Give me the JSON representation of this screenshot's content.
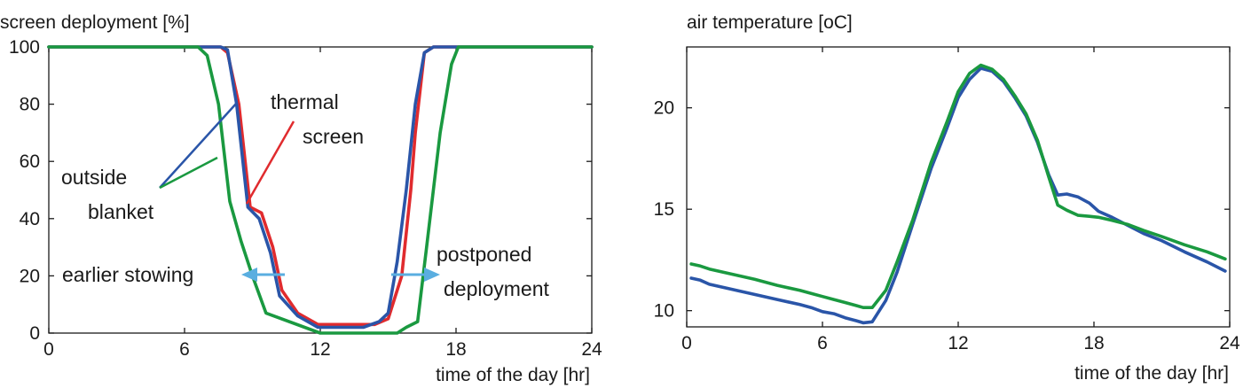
{
  "chart_data": [
    {
      "type": "line",
      "title": "screen deployment [%]",
      "xlabel": "time of the day [hr]",
      "ylabel": "",
      "xlim": [
        0,
        24
      ],
      "ylim": [
        0,
        100
      ],
      "xticks": [
        0,
        6,
        12,
        18,
        24
      ],
      "yticks": [
        0,
        20,
        40,
        60,
        80,
        100
      ],
      "series": [
        {
          "color": "#e02b2e",
          "x": [
            0,
            7.6,
            7.9,
            8.4,
            8.9,
            9.4,
            9.9,
            10.3,
            11,
            11.9,
            12.9,
            13.9,
            14.4,
            15,
            15.6,
            16.0,
            16.2,
            16.6,
            17,
            24
          ],
          "y": [
            100,
            100,
            98,
            80,
            44,
            42,
            30,
            15,
            7,
            3,
            3,
            3,
            3,
            5,
            20,
            50,
            70,
            98,
            100,
            100
          ]
        },
        {
          "color": "#2a55a8",
          "x": [
            0,
            7.6,
            7.9,
            8.3,
            8.8,
            9.3,
            9.8,
            10.2,
            11,
            11.9,
            12.9,
            13.9,
            14.6,
            15,
            15.4,
            15.8,
            16.2,
            16.6,
            17,
            24
          ],
          "y": [
            100,
            100,
            99,
            80,
            44,
            40,
            28,
            13,
            6,
            2,
            2,
            2,
            4,
            7,
            25,
            50,
            80,
            98,
            100,
            100
          ]
        },
        {
          "color": "#1a9940",
          "x": [
            0,
            6.6,
            7.0,
            7.5,
            8.0,
            8.5,
            9.0,
            9.6,
            12,
            15.4,
            15.8,
            16.3,
            16.7,
            17.3,
            17.8,
            18.1,
            24
          ],
          "y": [
            100,
            100,
            97,
            80,
            46,
            32,
            20,
            7,
            0,
            0,
            2,
            4,
            30,
            70,
            94,
            100,
            100
          ]
        }
      ],
      "annotations": [
        "thermal",
        "screen",
        "outside",
        "blanket",
        "earlier stowing",
        "postponed",
        "deployment"
      ]
    },
    {
      "type": "line",
      "title": "air temperature [oC]",
      "xlabel": "time of the day [hr]",
      "ylabel": "",
      "xlim": [
        0,
        24
      ],
      "ylim": [
        9.2,
        23
      ],
      "xticks": [
        0,
        6,
        12,
        18,
        24
      ],
      "yticks": [
        10,
        15,
        20
      ],
      "series": [
        {
          "color": "#2a55a8",
          "x": [
            0.2,
            0.6,
            1,
            2,
            3,
            4,
            5,
            5.5,
            6,
            6.5,
            7,
            7.5,
            7.8,
            8.2,
            8.8,
            9.3,
            10,
            10.8,
            11.5,
            12,
            12.5,
            13,
            13.5,
            14,
            14.5,
            15,
            15.5,
            16,
            16.4,
            16.8,
            17.3,
            17.8,
            18.2,
            18.8,
            19.5,
            20.2,
            21,
            22,
            23,
            23.8
          ],
          "y": [
            11.6,
            11.5,
            11.3,
            11.05,
            10.8,
            10.55,
            10.3,
            10.15,
            9.95,
            9.85,
            9.65,
            9.5,
            9.4,
            9.45,
            10.5,
            11.9,
            14.3,
            17.0,
            19.0,
            20.5,
            21.4,
            21.95,
            21.8,
            21.3,
            20.5,
            19.6,
            18.3,
            16.7,
            15.7,
            15.75,
            15.6,
            15.3,
            14.9,
            14.6,
            14.2,
            13.8,
            13.45,
            12.9,
            12.4,
            11.95
          ]
        },
        {
          "color": "#1a9940",
          "x": [
            0.2,
            0.6,
            1,
            2,
            3,
            4,
            5,
            5.5,
            6,
            6.5,
            7,
            7.5,
            7.8,
            8.2,
            8.8,
            9.3,
            10,
            10.8,
            11.5,
            12,
            12.5,
            13,
            13.5,
            14,
            14.5,
            15,
            15.5,
            16,
            16.4,
            16.8,
            17.3,
            17.8,
            18.2,
            18.8,
            19.5,
            20.2,
            21,
            22,
            23,
            23.8
          ],
          "y": [
            12.3,
            12.2,
            12.05,
            11.8,
            11.55,
            11.25,
            11.0,
            10.85,
            10.7,
            10.55,
            10.4,
            10.25,
            10.15,
            10.15,
            11.0,
            12.4,
            14.5,
            17.3,
            19.3,
            20.8,
            21.7,
            22.1,
            21.9,
            21.4,
            20.6,
            19.7,
            18.4,
            16.6,
            15.2,
            14.95,
            14.7,
            14.65,
            14.6,
            14.45,
            14.25,
            13.95,
            13.65,
            13.25,
            12.9,
            12.55
          ]
        }
      ]
    }
  ]
}
